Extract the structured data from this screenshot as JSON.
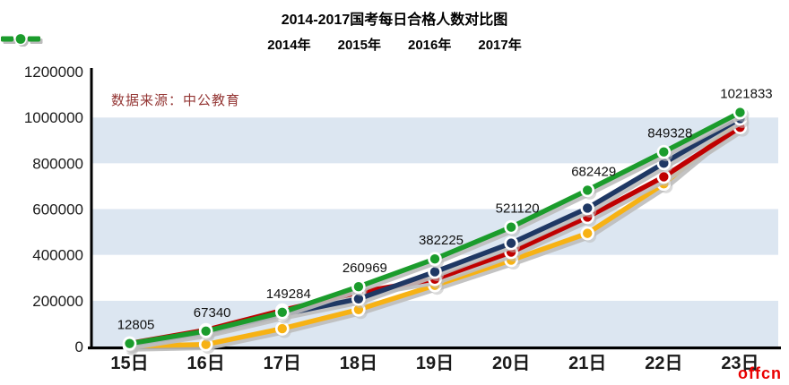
{
  "chart": {
    "title": "2014-2017国考每日合格人数对比图",
    "source_note": "数据来源：中公教育",
    "watermark": "offcn"
  },
  "chart_data": {
    "type": "line",
    "title": "2014-2017国考每日合格人数对比图",
    "xlabel": "",
    "ylabel": "",
    "categories": [
      "15日",
      "16日",
      "17日",
      "18日",
      "19日",
      "20日",
      "21日",
      "22日",
      "23日"
    ],
    "ylim": [
      0,
      1200000
    ],
    "y_ticks": [
      0,
      200000,
      400000,
      600000,
      800000,
      1000000,
      1200000
    ],
    "grid": "horizontal-bands",
    "band_color": "#DCE6F1",
    "legend_position": "top",
    "data_labels_series": "2017年",
    "series": [
      {
        "name": "2014年",
        "color": "#F7B214",
        "labeled": false,
        "values_estimated": true,
        "values": [
          2000,
          9000,
          78000,
          161000,
          267000,
          377000,
          494000,
          710000,
          984000
        ]
      },
      {
        "name": "2015年",
        "color": "#C00000",
        "labeled": false,
        "values_estimated": true,
        "values": [
          14000,
          72000,
          158000,
          237000,
          294000,
          412000,
          565000,
          741000,
          957000
        ]
      },
      {
        "name": "2016年",
        "color": "#1F3864",
        "labeled": false,
        "values_estimated": true,
        "values": [
          9000,
          62000,
          140000,
          208000,
          326000,
          451000,
          604000,
          800000,
          995000
        ]
      },
      {
        "name": "2017年",
        "color": "#1B9C2C",
        "labeled": true,
        "values_estimated": false,
        "values": [
          12805,
          67340,
          149284,
          260969,
          382225,
          521120,
          682429,
          849328,
          1021833
        ]
      }
    ],
    "source_note": "数据来源：中公教育",
    "watermark": "offcn"
  },
  "style": {
    "axis_color": "#000000",
    "tick_label_color": "#1a1a1a",
    "data_label_color": "#111111",
    "shadow_color": "#bcbcbc"
  }
}
